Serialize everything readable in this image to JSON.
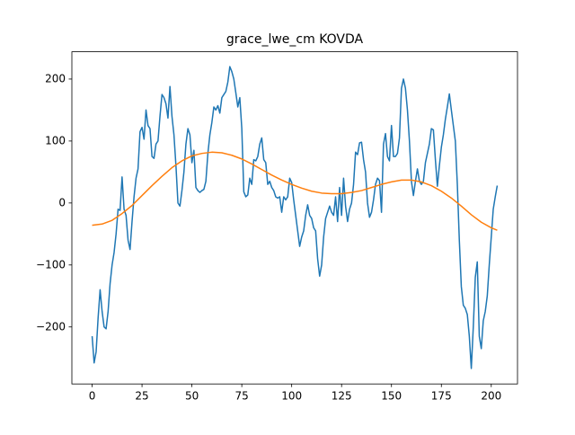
{
  "chart_data": {
    "type": "line",
    "title": "grace_lwe_cm KOVDA",
    "xlim": [
      -10.15,
      213.15
    ],
    "xticks": [
      0,
      25,
      50,
      75,
      100,
      125,
      150,
      175,
      200
    ],
    "ylim": [
      -292,
      244
    ],
    "yticks": [
      {
        "value": -200,
        "label": "−200"
      },
      {
        "value": -100,
        "label": "−100"
      },
      0,
      100,
      200
    ],
    "series": [
      {
        "color": "#1f77b4",
        "x": [
          0,
          1,
          2,
          3,
          4,
          5,
          6,
          7,
          8,
          9,
          10,
          11,
          12,
          13,
          14,
          15,
          16,
          17,
          18,
          19,
          20,
          21,
          22,
          23,
          24,
          25,
          26,
          27,
          28,
          29,
          30,
          31,
          32,
          33,
          34,
          35,
          36,
          37,
          38,
          39,
          40,
          41,
          42,
          43,
          44,
          45,
          46,
          47,
          48,
          49,
          50,
          51,
          52,
          53,
          54,
          55,
          56,
          57,
          58,
          59,
          60,
          61,
          62,
          63,
          64,
          65,
          66,
          67,
          68,
          69,
          70,
          71,
          72,
          73,
          74,
          75,
          76,
          77,
          78,
          79,
          80,
          81,
          82,
          83,
          84,
          85,
          86,
          87,
          88,
          89,
          90,
          91,
          92,
          93,
          94,
          95,
          96,
          97,
          98,
          99,
          100,
          101,
          102,
          103,
          104,
          105,
          106,
          107,
          108,
          109,
          110,
          111,
          112,
          113,
          114,
          115,
          116,
          117,
          118,
          119,
          120,
          121,
          122,
          123,
          124,
          125,
          126,
          127,
          128,
          129,
          130,
          131,
          132,
          133,
          134,
          135,
          136,
          137,
          138,
          139,
          140,
          141,
          142,
          143,
          144,
          145,
          146,
          147,
          148,
          149,
          150,
          151,
          152,
          153,
          154,
          155,
          156,
          157,
          158,
          159,
          160,
          161,
          162,
          163,
          164,
          165,
          166,
          167,
          168,
          169,
          170,
          171,
          172,
          173,
          174,
          175,
          176,
          177,
          178,
          179,
          180,
          181,
          182,
          183,
          184,
          185,
          186,
          187,
          188,
          189,
          190,
          191,
          192,
          193,
          194,
          195,
          196,
          197,
          198,
          199,
          200,
          201,
          202,
          203
        ],
        "values": [
          -215,
          -258,
          -240,
          -185,
          -140,
          -175,
          -200,
          -203,
          -175,
          -130,
          -100,
          -80,
          -50,
          -10,
          -12,
          42,
          -10,
          -20,
          -60,
          -75,
          -30,
          10,
          40,
          55,
          115,
          122,
          103,
          150,
          125,
          120,
          75,
          72,
          95,
          100,
          140,
          175,
          170,
          160,
          137,
          188,
          140,
          110,
          60,
          0,
          -5,
          20,
          50,
          95,
          120,
          110,
          65,
          85,
          25,
          20,
          17,
          20,
          22,
          35,
          80,
          110,
          130,
          155,
          150,
          157,
          145,
          170,
          175,
          180,
          195,
          220,
          212,
          200,
          178,
          155,
          170,
          120,
          18,
          10,
          13,
          40,
          30,
          70,
          68,
          75,
          95,
          105,
          70,
          65,
          30,
          35,
          25,
          20,
          10,
          8,
          10,
          -15,
          10,
          5,
          10,
          40,
          33,
          5,
          -20,
          -45,
          -70,
          -55,
          -45,
          -20,
          -3,
          -20,
          -25,
          -40,
          -45,
          -90,
          -118,
          -100,
          -55,
          -25,
          -15,
          -5,
          -15,
          -20,
          10,
          -30,
          25,
          -20,
          40,
          -5,
          -30,
          -10,
          0,
          30,
          82,
          78,
          97,
          98,
          70,
          50,
          0,
          -23,
          -15,
          5,
          30,
          40,
          36,
          -15,
          95,
          112,
          75,
          68,
          125,
          75,
          75,
          80,
          105,
          185,
          200,
          185,
          150,
          100,
          35,
          12,
          35,
          55,
          35,
          30,
          35,
          65,
          80,
          95,
          120,
          118,
          70,
          27,
          60,
          90,
          110,
          135,
          155,
          176,
          150,
          125,
          100,
          30,
          -60,
          -135,
          -165,
          -170,
          -180,
          -215,
          -267,
          -200,
          -120,
          -95,
          -215,
          -235,
          -190,
          -175,
          -150,
          -100,
          -55,
          -10,
          10,
          28
        ]
      },
      {
        "color": "#ff7f0e",
        "x": [
          0,
          5,
          10,
          15,
          20,
          25,
          30,
          35,
          40,
          45,
          50,
          55,
          60,
          65,
          70,
          75,
          80,
          85,
          90,
          95,
          100,
          105,
          110,
          115,
          120,
          125,
          130,
          135,
          140,
          145,
          150,
          155,
          160,
          165,
          170,
          175,
          180,
          185,
          190,
          195,
          200,
          203
        ],
        "values": [
          -36,
          -34,
          -28,
          -17,
          -4,
          12,
          28,
          43,
          57,
          68,
          76,
          80,
          82,
          81,
          77,
          71,
          63,
          54,
          45,
          37,
          30,
          24,
          19,
          16,
          15,
          15,
          17,
          20,
          25,
          30,
          34,
          37,
          37,
          34,
          28,
          19,
          8,
          -5,
          -19,
          -31,
          -40,
          -44
        ]
      }
    ]
  }
}
